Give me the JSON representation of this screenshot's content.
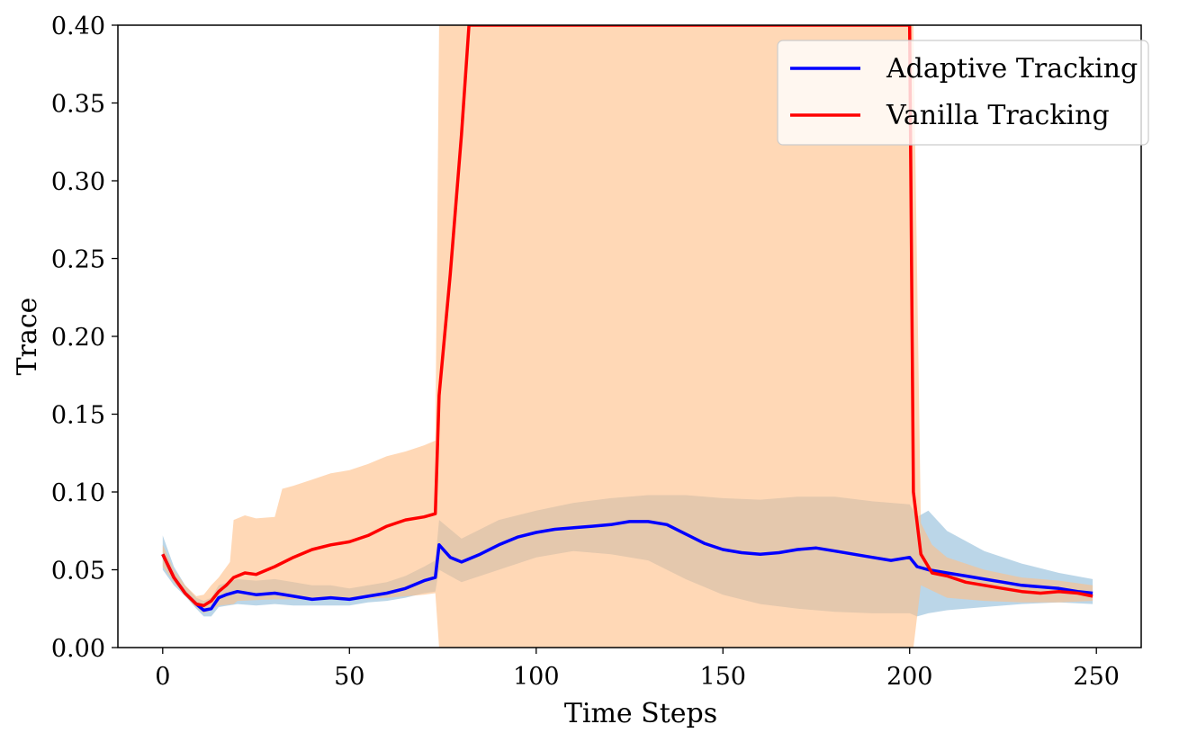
{
  "chart_data": {
    "type": "line",
    "title": "",
    "xlabel": "Time Steps",
    "ylabel": "Trace",
    "xlim": [
      -12,
      262
    ],
    "ylim": [
      0,
      0.4
    ],
    "xticks": [
      0,
      50,
      100,
      150,
      200,
      250
    ],
    "xtick_labels": [
      "0",
      "50",
      "100",
      "150",
      "200",
      "250"
    ],
    "yticks": [
      0.0,
      0.05,
      0.1,
      0.15,
      0.2,
      0.25,
      0.3,
      0.35,
      0.4
    ],
    "ytick_labels": [
      "0.00",
      "0.05",
      "0.10",
      "0.15",
      "0.20",
      "0.25",
      "0.30",
      "0.35",
      "0.40"
    ],
    "grid": false,
    "legend_position": "top-right",
    "series": [
      {
        "name": "Adaptive Tracking",
        "color": "#0000ff",
        "band_color": "#1f77b4",
        "points": [
          [
            0,
            0.06
          ],
          [
            3,
            0.045
          ],
          [
            6,
            0.035
          ],
          [
            9,
            0.028
          ],
          [
            11,
            0.024
          ],
          [
            13,
            0.025
          ],
          [
            15,
            0.032
          ],
          [
            17,
            0.034
          ],
          [
            20,
            0.036
          ],
          [
            25,
            0.034
          ],
          [
            30,
            0.035
          ],
          [
            35,
            0.033
          ],
          [
            40,
            0.031
          ],
          [
            45,
            0.032
          ],
          [
            50,
            0.031
          ],
          [
            55,
            0.033
          ],
          [
            60,
            0.035
          ],
          [
            65,
            0.038
          ],
          [
            70,
            0.043
          ],
          [
            73,
            0.045
          ],
          [
            74,
            0.066
          ],
          [
            77,
            0.058
          ],
          [
            80,
            0.055
          ],
          [
            85,
            0.06
          ],
          [
            90,
            0.066
          ],
          [
            95,
            0.071
          ],
          [
            100,
            0.074
          ],
          [
            105,
            0.076
          ],
          [
            110,
            0.077
          ],
          [
            115,
            0.078
          ],
          [
            120,
            0.079
          ],
          [
            125,
            0.081
          ],
          [
            130,
            0.081
          ],
          [
            135,
            0.079
          ],
          [
            140,
            0.073
          ],
          [
            145,
            0.067
          ],
          [
            150,
            0.063
          ],
          [
            155,
            0.061
          ],
          [
            160,
            0.06
          ],
          [
            165,
            0.061
          ],
          [
            170,
            0.063
          ],
          [
            175,
            0.064
          ],
          [
            180,
            0.062
          ],
          [
            185,
            0.06
          ],
          [
            190,
            0.058
          ],
          [
            195,
            0.056
          ],
          [
            200,
            0.058
          ],
          [
            202,
            0.052
          ],
          [
            205,
            0.05
          ],
          [
            210,
            0.048
          ],
          [
            215,
            0.046
          ],
          [
            220,
            0.044
          ],
          [
            225,
            0.042
          ],
          [
            230,
            0.04
          ],
          [
            235,
            0.039
          ],
          [
            240,
            0.038
          ],
          [
            245,
            0.036
          ],
          [
            249,
            0.035
          ]
        ],
        "band_lower": [
          [
            0,
            0.05
          ],
          [
            3,
            0.04
          ],
          [
            6,
            0.033
          ],
          [
            9,
            0.025
          ],
          [
            11,
            0.02
          ],
          [
            13,
            0.02
          ],
          [
            15,
            0.026
          ],
          [
            20,
            0.028
          ],
          [
            25,
            0.027
          ],
          [
            30,
            0.028
          ],
          [
            35,
            0.027
          ],
          [
            40,
            0.027
          ],
          [
            45,
            0.027
          ],
          [
            50,
            0.027
          ],
          [
            55,
            0.029
          ],
          [
            60,
            0.03
          ],
          [
            65,
            0.032
          ],
          [
            70,
            0.035
          ],
          [
            73,
            0.036
          ],
          [
            74,
            0.05
          ],
          [
            80,
            0.042
          ],
          [
            90,
            0.05
          ],
          [
            100,
            0.058
          ],
          [
            110,
            0.062
          ],
          [
            120,
            0.06
          ],
          [
            130,
            0.056
          ],
          [
            140,
            0.044
          ],
          [
            150,
            0.034
          ],
          [
            160,
            0.028
          ],
          [
            170,
            0.025
          ],
          [
            180,
            0.023
          ],
          [
            190,
            0.022
          ],
          [
            200,
            0.022
          ],
          [
            202,
            0.02
          ],
          [
            205,
            0.022
          ],
          [
            210,
            0.024
          ],
          [
            220,
            0.026
          ],
          [
            230,
            0.028
          ],
          [
            240,
            0.029
          ],
          [
            249,
            0.028
          ]
        ],
        "band_upper": [
          [
            0,
            0.072
          ],
          [
            3,
            0.052
          ],
          [
            6,
            0.04
          ],
          [
            9,
            0.032
          ],
          [
            11,
            0.03
          ],
          [
            13,
            0.032
          ],
          [
            15,
            0.04
          ],
          [
            20,
            0.044
          ],
          [
            25,
            0.043
          ],
          [
            30,
            0.044
          ],
          [
            35,
            0.042
          ],
          [
            40,
            0.04
          ],
          [
            45,
            0.04
          ],
          [
            50,
            0.038
          ],
          [
            55,
            0.04
          ],
          [
            60,
            0.042
          ],
          [
            65,
            0.046
          ],
          [
            70,
            0.052
          ],
          [
            73,
            0.056
          ],
          [
            74,
            0.082
          ],
          [
            80,
            0.07
          ],
          [
            90,
            0.082
          ],
          [
            100,
            0.088
          ],
          [
            110,
            0.093
          ],
          [
            120,
            0.096
          ],
          [
            130,
            0.098
          ],
          [
            140,
            0.098
          ],
          [
            150,
            0.096
          ],
          [
            160,
            0.095
          ],
          [
            170,
            0.097
          ],
          [
            180,
            0.097
          ],
          [
            190,
            0.094
          ],
          [
            200,
            0.092
          ],
          [
            202,
            0.084
          ],
          [
            205,
            0.088
          ],
          [
            210,
            0.075
          ],
          [
            220,
            0.062
          ],
          [
            230,
            0.054
          ],
          [
            240,
            0.048
          ],
          [
            249,
            0.044
          ]
        ]
      },
      {
        "name": "Vanilla Tracking",
        "color": "#ff0000",
        "band_color": "#ffbe86",
        "points": [
          [
            0,
            0.06
          ],
          [
            3,
            0.045
          ],
          [
            6,
            0.035
          ],
          [
            9,
            0.028
          ],
          [
            11,
            0.027
          ],
          [
            13,
            0.03
          ],
          [
            15,
            0.036
          ],
          [
            17,
            0.04
          ],
          [
            19,
            0.045
          ],
          [
            22,
            0.048
          ],
          [
            25,
            0.047
          ],
          [
            30,
            0.052
          ],
          [
            35,
            0.058
          ],
          [
            40,
            0.063
          ],
          [
            45,
            0.066
          ],
          [
            50,
            0.068
          ],
          [
            55,
            0.072
          ],
          [
            60,
            0.078
          ],
          [
            65,
            0.082
          ],
          [
            70,
            0.084
          ],
          [
            73,
            0.086
          ],
          [
            74,
            0.162
          ],
          [
            77,
            0.24
          ],
          [
            80,
            0.33
          ],
          [
            82,
            0.4
          ],
          [
            200,
            0.4
          ],
          [
            201,
            0.1
          ],
          [
            203,
            0.06
          ],
          [
            206,
            0.048
          ],
          [
            210,
            0.046
          ],
          [
            215,
            0.042
          ],
          [
            220,
            0.04
          ],
          [
            225,
            0.038
          ],
          [
            230,
            0.036
          ],
          [
            235,
            0.035
          ],
          [
            240,
            0.036
          ],
          [
            245,
            0.035
          ],
          [
            249,
            0.033
          ]
        ],
        "band_lower": [
          [
            0,
            0.052
          ],
          [
            3,
            0.042
          ],
          [
            6,
            0.033
          ],
          [
            9,
            0.026
          ],
          [
            11,
            0.022
          ],
          [
            13,
            0.024
          ],
          [
            15,
            0.027
          ],
          [
            19,
            0.028
          ],
          [
            20,
            0.03
          ],
          [
            30,
            0.031
          ],
          [
            40,
            0.031
          ],
          [
            50,
            0.031
          ],
          [
            60,
            0.032
          ],
          [
            70,
            0.034
          ],
          [
            73,
            0.035
          ],
          [
            74,
            0.0
          ],
          [
            201,
            0.0
          ],
          [
            203,
            0.04
          ],
          [
            210,
            0.032
          ],
          [
            220,
            0.03
          ],
          [
            230,
            0.029
          ],
          [
            240,
            0.029
          ],
          [
            249,
            0.03
          ]
        ],
        "band_upper": [
          [
            0,
            0.066
          ],
          [
            3,
            0.05
          ],
          [
            6,
            0.04
          ],
          [
            9,
            0.033
          ],
          [
            11,
            0.034
          ],
          [
            13,
            0.04
          ],
          [
            15,
            0.045
          ],
          [
            18,
            0.055
          ],
          [
            19,
            0.082
          ],
          [
            22,
            0.085
          ],
          [
            25,
            0.083
          ],
          [
            30,
            0.084
          ],
          [
            32,
            0.102
          ],
          [
            35,
            0.104
          ],
          [
            40,
            0.108
          ],
          [
            45,
            0.112
          ],
          [
            50,
            0.114
          ],
          [
            55,
            0.118
          ],
          [
            60,
            0.123
          ],
          [
            65,
            0.126
          ],
          [
            70,
            0.13
          ],
          [
            73,
            0.133
          ],
          [
            74,
            0.4
          ],
          [
            201,
            0.4
          ],
          [
            203,
            0.08
          ],
          [
            206,
            0.066
          ],
          [
            210,
            0.058
          ],
          [
            220,
            0.05
          ],
          [
            230,
            0.045
          ],
          [
            240,
            0.043
          ],
          [
            249,
            0.04
          ]
        ]
      }
    ]
  }
}
